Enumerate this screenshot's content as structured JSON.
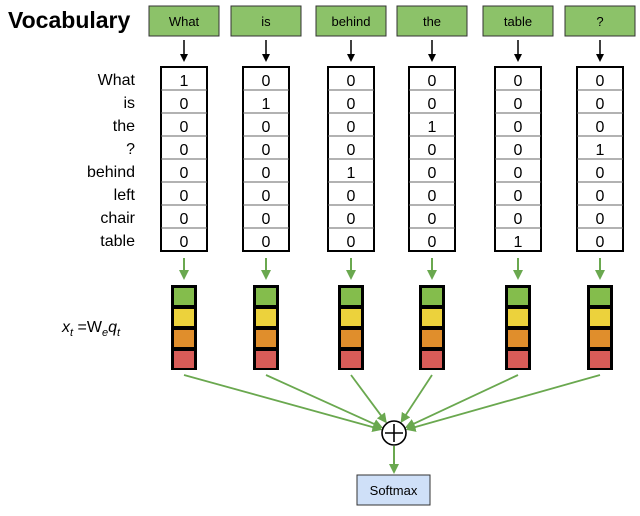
{
  "title": "Vocabulary",
  "vocabulary": [
    "What",
    "is",
    "the",
    "?",
    "behind",
    "left",
    "chair",
    "table"
  ],
  "words": [
    {
      "word": "What",
      "one_hot": [
        1,
        0,
        0,
        0,
        0,
        0,
        0,
        0
      ]
    },
    {
      "word": "is",
      "one_hot": [
        0,
        1,
        0,
        0,
        0,
        0,
        0,
        0
      ]
    },
    {
      "word": "behind",
      "one_hot": [
        0,
        0,
        0,
        0,
        1,
        0,
        0,
        0
      ]
    },
    {
      "word": "the",
      "one_hot": [
        0,
        0,
        1,
        0,
        0,
        0,
        0,
        0
      ]
    },
    {
      "word": "table",
      "one_hot": [
        0,
        0,
        0,
        0,
        0,
        0,
        0,
        1
      ]
    },
    {
      "word": "?",
      "one_hot": [
        0,
        0,
        0,
        1,
        0,
        0,
        0,
        0
      ]
    }
  ],
  "embedding_label": {
    "x": "x",
    "x_sub": "t",
    "eq": " =W",
    "w_sub": "e",
    "q": "q",
    "q_sub": "t"
  },
  "sum_symbol": "+",
  "output_label": "Softmax",
  "colors": {
    "word_box": "#8cc269",
    "embed": [
      "#84bd4c",
      "#ecd23c",
      "#e08e2c",
      "#d85c58"
    ],
    "green_arrow": "#6aa84f",
    "softmax_box": "#cfe0f8"
  }
}
